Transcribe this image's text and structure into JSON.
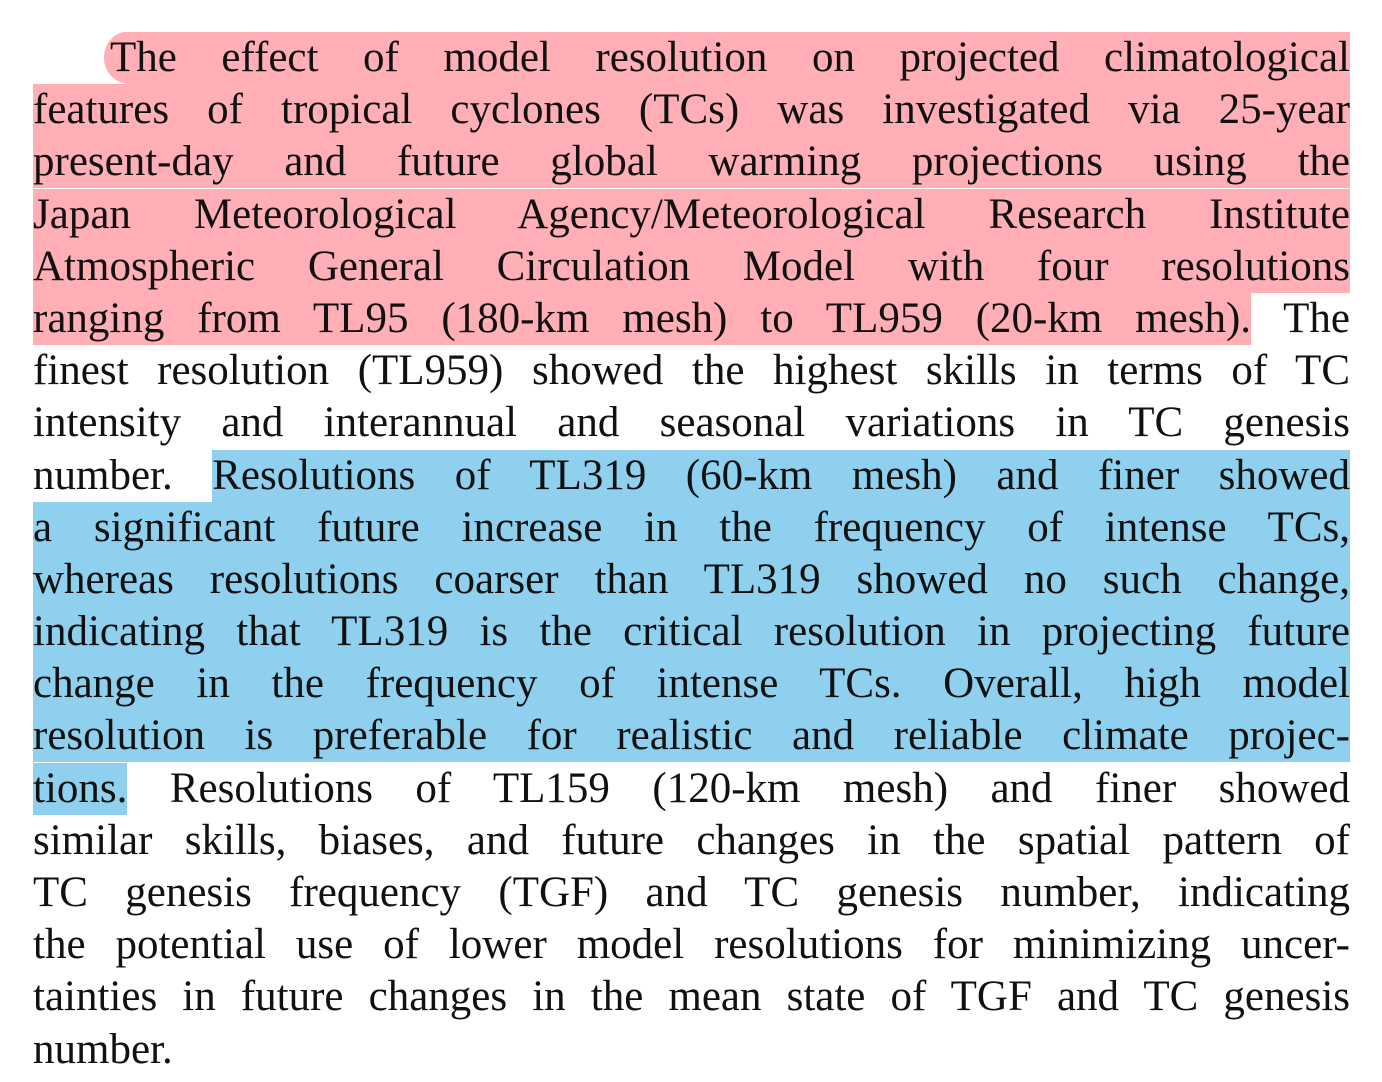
{
  "paragraph": {
    "lines": [
      [
        {
          "text": "The effect of model resolution on projected climatological",
          "highlight": "red"
        }
      ],
      [
        {
          "text": "features of tropical cyclones (TCs) was investigated via 25-year",
          "highlight": "red"
        }
      ],
      [
        {
          "text": "present-day and future global warming projections using the",
          "highlight": "red"
        }
      ],
      [
        {
          "text": "Japan Meteorological Agency/Meteorological Research Institute",
          "highlight": "red"
        }
      ],
      [
        {
          "text": "Atmospheric General Circulation Model with four resolutions",
          "highlight": "red"
        }
      ],
      [
        {
          "text": "ranging from TL95 (180-km mesh) to TL959 (20-km mesh).",
          "highlight": "red"
        },
        {
          "text": "The"
        }
      ],
      [
        {
          "text": "finest resolution (TL959) showed the highest skills in terms of TC"
        }
      ],
      [
        {
          "text": "intensity and interannual and seasonal variations in TC genesis"
        }
      ],
      [
        {
          "text": "number."
        },
        {
          "text": "Resolutions of TL319 (60-km mesh) and finer showed",
          "highlight": "blue"
        }
      ],
      [
        {
          "text": "a significant future increase in the frequency of intense TCs,",
          "highlight": "blue"
        }
      ],
      [
        {
          "text": "whereas resolutions coarser than TL319 showed no such change,",
          "highlight": "blue"
        }
      ],
      [
        {
          "text": "indicating that TL319 is the critical resolution in projecting future",
          "highlight": "blue"
        }
      ],
      [
        {
          "text": "change in the frequency of intense TCs. Overall, high model",
          "highlight": "blue"
        }
      ],
      [
        {
          "text": "resolution is preferable for realistic and reliable climate projec-",
          "highlight": "blue"
        }
      ],
      [
        {
          "text": "tions.",
          "highlight": "blue"
        },
        {
          "text": "Resolutions of TL159 (120-km mesh) and finer showed"
        }
      ],
      [
        {
          "text": "similar skills, biases, and future changes in the spatial pattern of"
        }
      ],
      [
        {
          "text": "TC genesis frequency (TGF) and TC genesis number, indicating"
        }
      ],
      [
        {
          "text": "the potential use of lower model resolutions for minimizing uncer-"
        }
      ],
      [
        {
          "text": "tainties in future changes in the mean state of TGF and TC genesis"
        }
      ],
      [
        {
          "text": "number."
        }
      ]
    ]
  }
}
